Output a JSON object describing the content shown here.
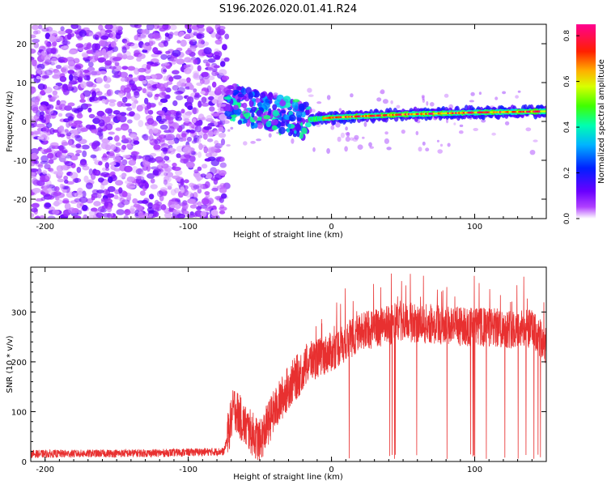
{
  "title": "S196.2026.020.01.41.R24",
  "chart_data": [
    {
      "type": "heatmap",
      "xlabel": "Height of straight line (km)",
      "ylabel": "Frequency (Hz)",
      "xlim": [
        -210,
        150
      ],
      "ylim": [
        -25,
        25
      ],
      "xticks": [
        -200,
        -100,
        0,
        100
      ],
      "xtick_labels": [
        "-200",
        "-100",
        "0",
        "100"
      ],
      "yticks": [
        -20,
        -10,
        0,
        10,
        20
      ],
      "ytick_labels": [
        "-20",
        "-10",
        "0",
        "10",
        "20"
      ],
      "colorbar": {
        "label": "Normalized spectral amplitude",
        "range": [
          0.0,
          0.85
        ],
        "ticks": [
          0.0,
          0.2,
          0.4,
          0.6,
          0.8
        ],
        "tick_labels": [
          "0.0",
          "0.2",
          "0.4",
          "0.6",
          "0.8"
        ],
        "colors": [
          "#ffffff",
          "#8a00ff",
          "#0000ff",
          "#00c8ff",
          "#00ff60",
          "#a0ff00",
          "#ffe000",
          "#ff8000",
          "#ff0000",
          "#ff0090"
        ]
      },
      "regions": [
        {
          "name": "noise",
          "x_range": [
            -210,
            -73
          ],
          "freq_range": [
            -25,
            25
          ],
          "amplitude_range": [
            0.0,
            0.12
          ]
        },
        {
          "name": "transition",
          "x_range": [
            -73,
            -15
          ],
          "freq_range": [
            -6,
            8
          ],
          "amplitude_range": [
            0.05,
            0.45
          ]
        },
        {
          "name": "signal-line",
          "x_range": [
            -15,
            150
          ],
          "freq_center": [
            [
              -15,
              0.5
            ],
            [
              0,
              1.0
            ],
            [
              50,
              1.8
            ],
            [
              100,
              2.3
            ],
            [
              150,
              2.6
            ]
          ],
          "amplitude_peak": 0.85
        }
      ]
    },
    {
      "type": "line",
      "xlabel": "Height of straight line (km)",
      "ylabel": "SNR (10 * v/v)",
      "xlim": [
        -210,
        150
      ],
      "ylim": [
        0,
        390
      ],
      "xticks": [
        -200,
        -100,
        0,
        100
      ],
      "xtick_labels": [
        "-200",
        "-100",
        "0",
        "100"
      ],
      "yticks": [
        0,
        100,
        200,
        300
      ],
      "ytick_labels": [
        "0",
        "100",
        "200",
        "300"
      ],
      "color": "#e83030",
      "trend": [
        {
          "x": -210,
          "y": 15
        },
        {
          "x": -120,
          "y": 17
        },
        {
          "x": -75,
          "y": 20
        },
        {
          "x": -68,
          "y": 110
        },
        {
          "x": -60,
          "y": 70
        },
        {
          "x": -50,
          "y": 40
        },
        {
          "x": -42,
          "y": 90
        },
        {
          "x": -30,
          "y": 150
        },
        {
          "x": -15,
          "y": 200
        },
        {
          "x": 0,
          "y": 220
        },
        {
          "x": 20,
          "y": 260
        },
        {
          "x": 50,
          "y": 280
        },
        {
          "x": 100,
          "y": 270
        },
        {
          "x": 140,
          "y": 265
        },
        {
          "x": 150,
          "y": 230
        }
      ]
    }
  ]
}
